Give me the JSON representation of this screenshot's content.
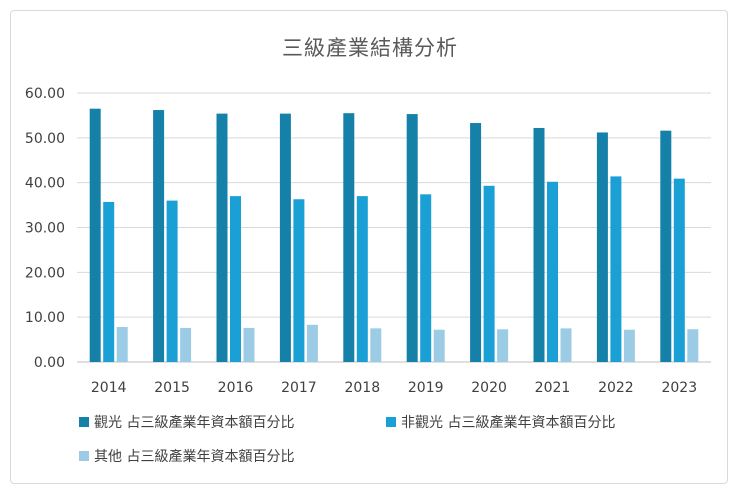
{
  "chart_data": {
    "type": "bar",
    "title": "三級產業結構分析",
    "xlabel": "",
    "ylabel": "",
    "categories": [
      "2014",
      "2015",
      "2016",
      "2017",
      "2018",
      "2019",
      "2020",
      "2021",
      "2022",
      "2023"
    ],
    "ylim": [
      0,
      60
    ],
    "yticks": [
      "0.00",
      "10.00",
      "20.00",
      "30.00",
      "40.00",
      "50.00",
      "60.00"
    ],
    "grid": true,
    "legend_position": "bottom",
    "series": [
      {
        "name": "觀光 占三級產業年資本額百分比",
        "color": "#1581a8",
        "values": [
          56.5,
          56.2,
          55.4,
          55.4,
          55.5,
          55.3,
          53.3,
          52.2,
          51.2,
          51.6
        ]
      },
      {
        "name": "非觀光 占三級產業年資本額百分比",
        "color": "#1ba0d6",
        "values": [
          35.7,
          36.0,
          37.0,
          36.3,
          37.0,
          37.4,
          39.3,
          40.2,
          41.4,
          40.9
        ]
      },
      {
        "name": "其他 占三級產業年資本額百分比",
        "color": "#9ccbe5",
        "values": [
          7.8,
          7.6,
          7.6,
          8.3,
          7.5,
          7.2,
          7.3,
          7.5,
          7.2,
          7.3
        ]
      }
    ]
  }
}
